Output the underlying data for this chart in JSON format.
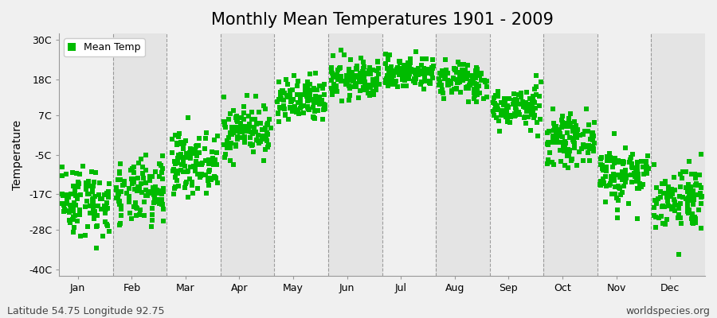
{
  "title": "Monthly Mean Temperatures 1901 - 2009",
  "ylabel": "Temperature",
  "yticks": [
    -40,
    -28,
    -17,
    -5,
    7,
    18,
    30
  ],
  "ytick_labels": [
    "-40C",
    "-28C",
    "-17C",
    "-5C",
    "7C",
    "18C",
    "30C"
  ],
  "ylim": [
    -42,
    32
  ],
  "months": [
    "Jan",
    "Feb",
    "Mar",
    "Apr",
    "May",
    "Jun",
    "Jul",
    "Aug",
    "Sep",
    "Oct",
    "Nov",
    "Dec"
  ],
  "month_means": [
    -19.0,
    -17.0,
    -7.5,
    2.5,
    11.0,
    18.0,
    20.0,
    17.5,
    9.5,
    -0.5,
    -11.0,
    -18.0
  ],
  "month_stds": [
    5.5,
    5.0,
    4.5,
    4.0,
    3.5,
    3.0,
    2.5,
    2.8,
    3.0,
    3.5,
    4.5,
    5.0
  ],
  "n_years": 109,
  "marker_color": "#00BB00",
  "marker": "s",
  "marker_size": 4,
  "bg_color": "#ebebeb",
  "band_color_light": "#f0f0f0",
  "band_color_dark": "#e4e4e4",
  "grid_color": "#666666",
  "legend_label": "Mean Temp",
  "caption_left": "Latitude 54.75 Longitude 92.75",
  "caption_right": "worldspecies.org",
  "caption_fontsize": 9,
  "title_fontsize": 15
}
